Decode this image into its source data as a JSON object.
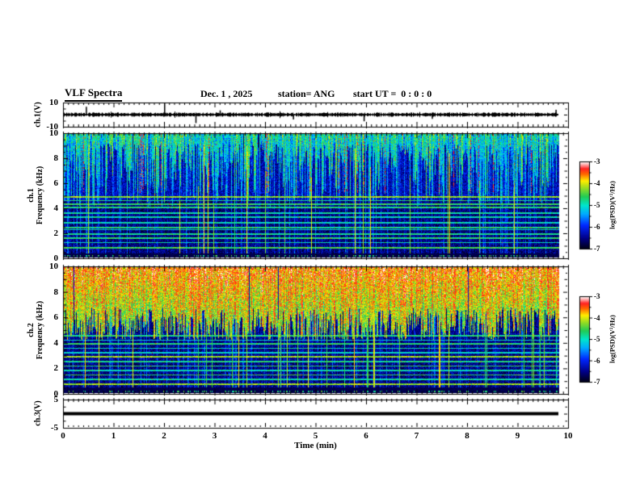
{
  "header": {
    "title": "VLF Spectra",
    "date": "Dec. 1 , 2025",
    "station": "station= ANG",
    "start_ut": "start UT =  0 : 0 : 0"
  },
  "chart_data": {
    "type": "heatmap",
    "title": "VLF Spectra",
    "time_axis": {
      "label": "Time (min)",
      "min": 0,
      "max": 10,
      "major_ticks": [
        0,
        1,
        2,
        3,
        4,
        5,
        6,
        7,
        8,
        9,
        10
      ],
      "minor_step": 0.1,
      "data_end_min": 9.82
    },
    "panels": [
      {
        "id": "ch1_wave",
        "type": "line",
        "ylabel": "ch.1(V)",
        "ymin": -10,
        "ymax": 10,
        "ytick_labels": [
          10,
          -10
        ],
        "description": "broadband noise of about +/-2 V with sporadic impulses",
        "noise_amp_v": 2,
        "spikes": [
          {
            "t": 0.45,
            "amp": 6.5
          },
          {
            "t": 2.0,
            "amp": 10
          },
          {
            "t": 2.62,
            "amp": -7
          },
          {
            "t": 3.1,
            "amp": 3.5
          },
          {
            "t": 4.55,
            "amp": -4
          },
          {
            "t": 5.95,
            "amp": -5.5
          },
          {
            "t": 7.3,
            "amp": -3.5
          },
          {
            "t": 9.75,
            "amp": 4
          }
        ]
      },
      {
        "id": "ch1_spec",
        "type": "spectrogram",
        "ylabel_ch": "ch.1",
        "ylabel": "Frequency (kHz)",
        "fmin": 0,
        "fmax": 10,
        "ytick_major": [
          0,
          2,
          4,
          6,
          8,
          10
        ],
        "ytick_minor_step": 0.5,
        "h_lines_khz": [
          0.8,
          1.2,
          1.55,
          1.9,
          2.25,
          2.4,
          2.8,
          3.25,
          3.6,
          4.05,
          4.3,
          4.6,
          4.9
        ],
        "character": "dark blue background, dense cyan-green vertical sferic streaks strongest above 5 kHz, green horizontal tweek lines below 5 kHz, sparse red flecks, black band near 0 kHz"
      },
      {
        "id": "ch2_spec",
        "type": "spectrogram",
        "ylabel_ch": "ch.2",
        "ylabel": "Frequency (kHz)",
        "fmin": 0,
        "fmax": 10,
        "ytick_major": [
          0,
          2,
          4,
          6,
          8,
          10
        ],
        "ytick_minor_step": 0.5,
        "h_lines_khz": [
          0.7,
          1.1,
          1.45,
          1.8,
          2.15,
          2.5,
          2.9,
          3.2,
          3.55,
          3.9,
          4.2,
          4.55
        ],
        "character": "bright yellow-green above ~5.5 kHz with red vertical streaks, dark blue below with cyan horizontal lines and full-height green streaks, black band near 0 kHz"
      },
      {
        "id": "ch3_wave",
        "type": "line",
        "ylabel": "ch.3(V)",
        "ymin": -5,
        "ymax": 5,
        "ytick_labels": [
          5,
          -5
        ],
        "value": 0,
        "description": "flat thick trace at 0 V for the whole record"
      }
    ],
    "colorbars": [
      {
        "ticks": [
          -3,
          -4,
          -5,
          -6,
          -7
        ],
        "minor_step": 0.5,
        "label": "log(PSD)(V²/Hz)",
        "min": -7,
        "max": -3
      },
      {
        "ticks": [
          -3,
          -4,
          -5,
          -6,
          -7
        ],
        "minor_step": 0.5,
        "label": "log(PSD)(V²/Hz)",
        "min": -7,
        "max": -3
      }
    ],
    "palette_stops": [
      [
        "#000014",
        0
      ],
      [
        "#000085",
        0.12
      ],
      [
        "#0028ff",
        0.27
      ],
      [
        "#00aaff",
        0.4
      ],
      [
        "#00e6cc",
        0.5
      ],
      [
        "#22cc55",
        0.6
      ],
      [
        "#99dd22",
        0.7
      ],
      [
        "#ffee00",
        0.78
      ],
      [
        "#ff6600",
        0.86
      ],
      [
        "#ff2222",
        0.92
      ],
      [
        "#ffb3b3",
        0.97
      ],
      [
        "#ffffff",
        1
      ]
    ],
    "frame_color": "#000000",
    "background_color": "#ffffff"
  }
}
